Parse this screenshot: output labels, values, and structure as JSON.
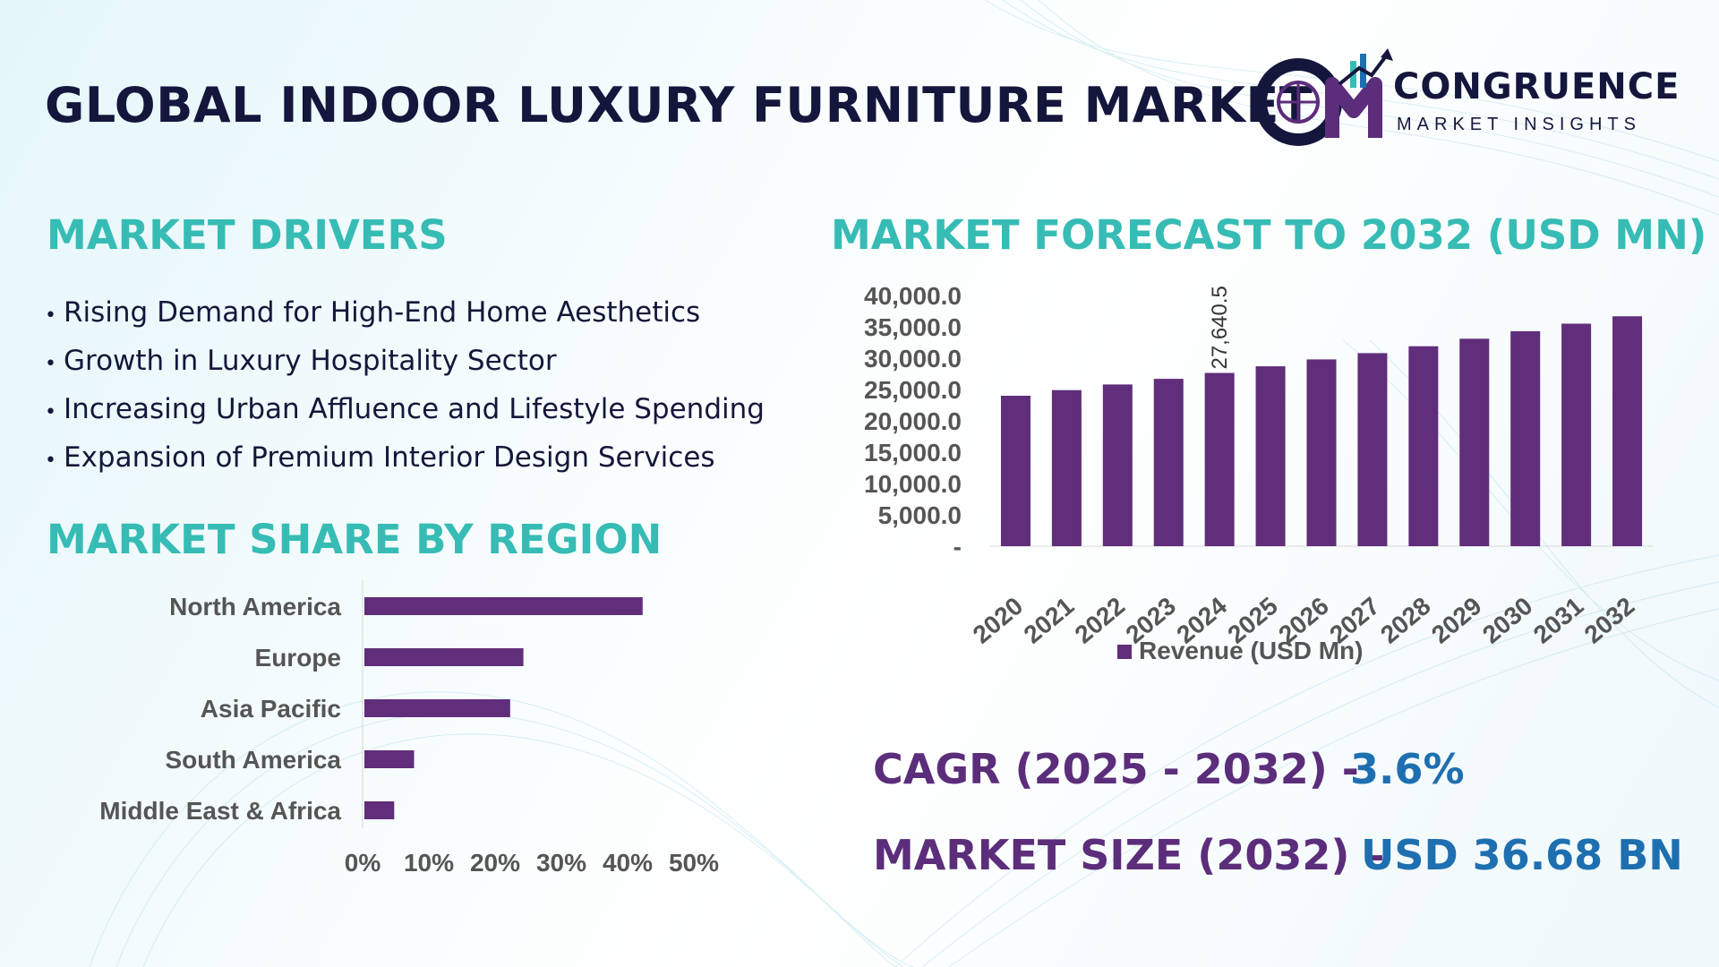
{
  "title": "GLOBAL INDOOR LUXURY FURNITURE MARKET",
  "logo": {
    "word": "CONGRUENCE",
    "sub": "MARKET INSIGHTS"
  },
  "colors": {
    "bar": "#602e7a",
    "teal_heading": "#36bcb4",
    "navy": "#14163c",
    "purple_text": "#5b2d7a",
    "blue_value": "#1e6fb0",
    "axis_text": "#555555"
  },
  "drivers": {
    "heading": "MARKET DRIVERS",
    "items": [
      "Rising Demand for High-End Home Aesthetics",
      "Growth in Luxury Hospitality Sector",
      "Increasing Urban Affluence and Lifestyle Spending",
      "Expansion of Premium Interior Design Services"
    ]
  },
  "region": {
    "heading": "MARKET SHARE BY REGION"
  },
  "forecast": {
    "heading": "MARKET FORECAST TO 2032 (USD MN)"
  },
  "stats": {
    "cagr_label": "CAGR (2025 - 2032) -",
    "cagr_value": "3.6%",
    "size_label": "MARKET SIZE (2032) –",
    "size_value": "USD 36.68 BN"
  },
  "chart_data": [
    {
      "type": "bar",
      "orientation": "horizontal",
      "categories": [
        "North America",
        "Europe",
        "Asia Pacific",
        "South America",
        "Middle East & Africa"
      ],
      "values": [
        42,
        24,
        22,
        7.5,
        4.5
      ],
      "xlim": [
        0,
        50
      ],
      "xticks": [
        "0%",
        "10%",
        "20%",
        "30%",
        "40%",
        "50%"
      ],
      "grid": false,
      "legend": "none"
    },
    {
      "type": "bar",
      "orientation": "vertical",
      "categories": [
        "2020",
        "2021",
        "2022",
        "2023",
        "2024",
        "2025",
        "2026",
        "2027",
        "2028",
        "2029",
        "2030",
        "2031",
        "2032"
      ],
      "series": [
        {
          "name": "Revenue (USD Mn)",
          "values": [
            24000,
            24900,
            25800,
            26700,
            27640.5,
            28700,
            29800,
            30800,
            31900,
            33100,
            34300,
            35500,
            36680
          ]
        }
      ],
      "data_labels": [
        {
          "index": 4,
          "text": "27,640.5"
        }
      ],
      "ylim": [
        0,
        40000
      ],
      "yticks": [
        "-",
        "5,000.0",
        "10,000.0",
        "15,000.0",
        "20,000.0",
        "25,000.0",
        "30,000.0",
        "35,000.0",
        "40,000.0"
      ],
      "grid": false,
      "legend": "bottom-center"
    }
  ]
}
